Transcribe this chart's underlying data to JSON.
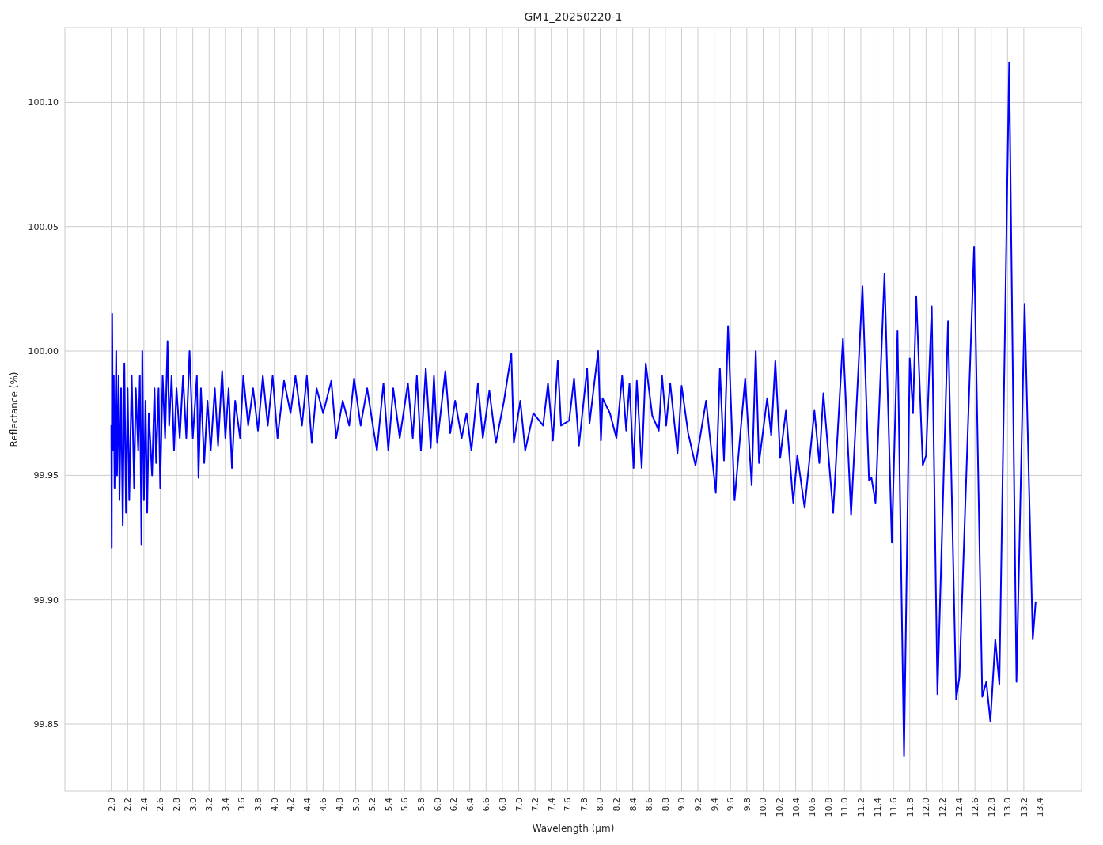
{
  "chart_data": {
    "type": "line",
    "title": "GM1_20250220-1",
    "xlabel": "Wavelength (µm)",
    "ylabel": "Reflectance (%)",
    "grid": true,
    "xlim": [
      1.43,
      13.91
    ],
    "ylim": [
      99.823,
      100.13
    ],
    "xticks": [
      {
        "value": 2,
        "label": "2.0"
      },
      2.2,
      2.4,
      2.6,
      2.8,
      {
        "value": 3,
        "label": "3.0"
      },
      3.2,
      3.4,
      3.6,
      3.8,
      {
        "value": 4,
        "label": "4.0"
      },
      4.2,
      4.4,
      4.6,
      4.8,
      {
        "value": 5,
        "label": "5.0"
      },
      5.2,
      5.4,
      5.6,
      5.8,
      {
        "value": 6,
        "label": "6.0"
      },
      6.2,
      6.4,
      6.6,
      6.8,
      {
        "value": 7,
        "label": "7.0"
      },
      7.2,
      7.4,
      7.6,
      7.8,
      {
        "value": 8,
        "label": "8.0"
      },
      8.2,
      8.4,
      8.6,
      8.8,
      {
        "value": 9,
        "label": "9.0"
      },
      9.2,
      9.4,
      9.6,
      9.8,
      {
        "value": 10,
        "label": "10.0"
      },
      10.2,
      10.4,
      10.6,
      10.8,
      {
        "value": 11,
        "label": "11.0"
      },
      11.2,
      11.4,
      11.6,
      11.8,
      {
        "value": 12,
        "label": "12.0"
      },
      12.2,
      12.4,
      12.6,
      12.8,
      {
        "value": 13,
        "label": "13.0"
      },
      13.2,
      13.4
    ],
    "yticks": [
      99.85,
      {
        "value": 99.9,
        "label": "99.90"
      },
      99.95,
      {
        "value": 100,
        "label": "100.00"
      },
      100.05,
      {
        "value": 100.1,
        "label": "100.10"
      }
    ],
    "series": [
      {
        "color": "#0000ff",
        "x": [
          2.0,
          2.005,
          2.01,
          2.02,
          2.03,
          2.04,
          2.06,
          2.07,
          2.09,
          2.1,
          2.12,
          2.14,
          2.16,
          2.18,
          2.2,
          2.22,
          2.25,
          2.28,
          2.3,
          2.33,
          2.35,
          2.37,
          2.38,
          2.4,
          2.42,
          2.44,
          2.46,
          2.5,
          2.53,
          2.55,
          2.58,
          2.6,
          2.63,
          2.66,
          2.69,
          2.71,
          2.74,
          2.77,
          2.8,
          2.84,
          2.88,
          2.92,
          2.96,
          3.0,
          3.05,
          3.07,
          3.1,
          3.14,
          3.18,
          3.22,
          3.27,
          3.31,
          3.36,
          3.4,
          3.44,
          3.48,
          3.52,
          3.58,
          3.62,
          3.68,
          3.74,
          3.8,
          3.86,
          3.92,
          3.98,
          4.04,
          4.12,
          4.2,
          4.26,
          4.34,
          4.4,
          4.46,
          4.52,
          4.6,
          4.7,
          4.76,
          4.84,
          4.92,
          4.98,
          5.06,
          5.14,
          5.22,
          5.26,
          5.34,
          5.4,
          5.46,
          5.54,
          5.64,
          5.7,
          5.75,
          5.8,
          5.86,
          5.92,
          5.96,
          6.0,
          6.1,
          6.16,
          6.22,
          6.3,
          6.36,
          6.42,
          6.5,
          6.56,
          6.64,
          6.72,
          6.82,
          6.91,
          6.94,
          7.02,
          7.08,
          7.18,
          7.3,
          7.36,
          7.42,
          7.48,
          7.52,
          7.62,
          7.68,
          7.74,
          7.84,
          7.87,
          7.975,
          8.01,
          8.03,
          8.12,
          8.2,
          8.27,
          8.32,
          8.36,
          8.41,
          8.45,
          8.51,
          8.56,
          8.64,
          8.72,
          8.76,
          8.81,
          8.86,
          8.95,
          9.0,
          9.08,
          9.17,
          9.3,
          9.42,
          9.47,
          9.52,
          9.57,
          9.65,
          9.78,
          9.86,
          9.91,
          9.95,
          10.05,
          10.1,
          10.15,
          10.21,
          10.28,
          10.37,
          10.42,
          10.51,
          10.63,
          10.69,
          10.74,
          10.86,
          10.98,
          11.08,
          11.22,
          11.3,
          11.33,
          11.38,
          11.49,
          11.58,
          11.65,
          11.73,
          11.8,
          11.84,
          11.88,
          11.96,
          12.0,
          12.07,
          12.14,
          12.27,
          12.37,
          12.41,
          12.59,
          12.69,
          12.74,
          12.79,
          12.85,
          12.9,
          13.02,
          13.11,
          13.21,
          13.31,
          13.345
        ],
        "values": [
          99.97,
          99.921,
          100.015,
          99.96,
          99.99,
          99.945,
          100.0,
          99.95,
          99.99,
          99.94,
          99.985,
          99.93,
          99.995,
          99.935,
          99.985,
          99.94,
          99.99,
          99.945,
          99.985,
          99.96,
          99.99,
          99.922,
          100.0,
          99.94,
          99.98,
          99.935,
          99.975,
          99.95,
          99.985,
          99.955,
          99.985,
          99.945,
          99.99,
          99.965,
          100.004,
          99.97,
          99.99,
          99.96,
          99.985,
          99.965,
          99.99,
          99.965,
          100.0,
          99.965,
          99.99,
          99.949,
          99.985,
          99.955,
          99.98,
          99.96,
          99.985,
          99.962,
          99.992,
          99.965,
          99.985,
          99.953,
          99.98,
          99.965,
          99.99,
          99.97,
          99.985,
          99.968,
          99.99,
          99.97,
          99.99,
          99.965,
          99.988,
          99.975,
          99.99,
          99.97,
          99.99,
          99.963,
          99.985,
          99.975,
          99.988,
          99.965,
          99.98,
          99.97,
          99.989,
          99.97,
          99.985,
          99.968,
          99.96,
          99.987,
          99.96,
          99.985,
          99.965,
          99.987,
          99.965,
          99.99,
          99.96,
          99.993,
          99.961,
          99.99,
          99.963,
          99.992,
          99.967,
          99.98,
          99.965,
          99.975,
          99.96,
          99.987,
          99.965,
          99.984,
          99.963,
          99.98,
          99.999,
          99.963,
          99.98,
          99.96,
          99.975,
          99.97,
          99.987,
          99.964,
          99.996,
          99.97,
          99.972,
          99.989,
          99.962,
          99.993,
          99.971,
          100.0,
          99.964,
          99.981,
          99.975,
          99.965,
          99.99,
          99.968,
          99.987,
          99.953,
          99.988,
          99.953,
          99.995,
          99.974,
          99.968,
          99.99,
          99.97,
          99.987,
          99.959,
          99.986,
          99.967,
          99.954,
          99.98,
          99.943,
          99.993,
          99.956,
          100.01,
          99.94,
          99.989,
          99.946,
          100.0,
          99.955,
          99.981,
          99.966,
          99.996,
          99.957,
          99.976,
          99.939,
          99.958,
          99.937,
          99.976,
          99.955,
          99.983,
          99.935,
          100.005,
          99.934,
          100.026,
          99.948,
          99.949,
          99.939,
          100.031,
          99.923,
          100.008,
          99.837,
          99.997,
          99.975,
          100.022,
          99.954,
          99.958,
          100.018,
          99.862,
          100.012,
          99.86,
          99.869,
          100.042,
          99.861,
          99.867,
          99.851,
          99.884,
          99.866,
          100.116,
          99.867,
          100.019,
          99.884,
          99.899
        ]
      }
    ]
  }
}
